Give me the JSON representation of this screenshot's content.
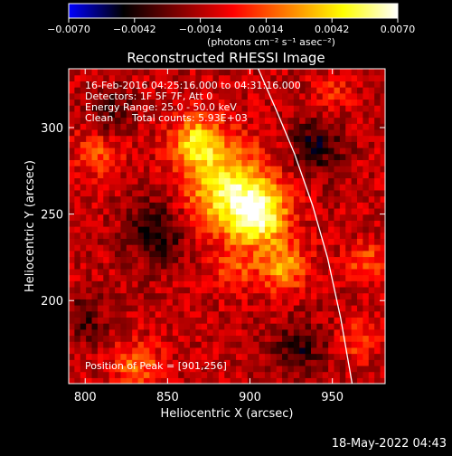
{
  "colorbar": {
    "min": -0.007,
    "max": 0.007,
    "tick_values": [
      -0.007,
      -0.0042,
      -0.0014,
      0.0014,
      0.0042,
      0.007
    ],
    "tick_labels": [
      "−0.0070",
      "−0.0042",
      "−0.0014",
      "0.0014",
      "0.0042",
      "0.0070"
    ],
    "unit_label": "(photons cm⁻² s⁻¹ asec⁻²)",
    "colormap": [
      "#0000ff",
      "#000000",
      "#800000",
      "#ff0000",
      "#ff8000",
      "#ffff00",
      "#ffffff"
    ]
  },
  "chart_data": {
    "type": "heatmap",
    "title": "Reconstructed RHESSI Image",
    "xlabel": "Heliocentric X (arcsec)",
    "ylabel": "Heliocentric Y (arcsec)",
    "xlim": [
      790,
      982
    ],
    "ylim": [
      152,
      334
    ],
    "x_ticks": [
      800,
      850,
      900,
      950
    ],
    "y_ticks": [
      200,
      250,
      300
    ],
    "grid": false,
    "peak_position": [
      901,
      256
    ],
    "sources": [
      {
        "x": 885,
        "y": 265,
        "intensity": 0.0058,
        "sigma": 18
      },
      {
        "x": 905,
        "y": 250,
        "intensity": 0.0068,
        "sigma": 12
      },
      {
        "x": 868,
        "y": 292,
        "intensity": 0.005,
        "sigma": 10
      },
      {
        "x": 920,
        "y": 220,
        "intensity": 0.0042,
        "sigma": 10
      },
      {
        "x": 890,
        "y": 218,
        "intensity": 0.0022,
        "sigma": 9
      },
      {
        "x": 808,
        "y": 285,
        "intensity": 0.0025,
        "sigma": 10
      },
      {
        "x": 832,
        "y": 162,
        "intensity": 0.003,
        "sigma": 10
      },
      {
        "x": 970,
        "y": 222,
        "intensity": 0.0028,
        "sigma": 8
      },
      {
        "x": 965,
        "y": 178,
        "intensity": 0.0022,
        "sigma": 8
      },
      {
        "x": 950,
        "y": 320,
        "intensity": 0.0016,
        "sigma": 8
      },
      {
        "x": 845,
        "y": 240,
        "intensity": -0.003,
        "sigma": 14
      },
      {
        "x": 815,
        "y": 310,
        "intensity": -0.0025,
        "sigma": 10
      },
      {
        "x": 940,
        "y": 290,
        "intensity": -0.003,
        "sigma": 12
      },
      {
        "x": 930,
        "y": 172,
        "intensity": -0.0025,
        "sigma": 12
      },
      {
        "x": 800,
        "y": 190,
        "intensity": -0.002,
        "sigma": 10
      }
    ],
    "limb_curve": {
      "x": [
        905,
        916,
        927,
        938,
        947,
        955,
        962
      ],
      "y": [
        334,
        310,
        285,
        255,
        225,
        190,
        152
      ]
    },
    "annotations": {
      "time_range": "16-Feb-2016 04:25:16.000 to 04:31:16.000",
      "detectors": "Detectors: 1F 5F 7F, Att 0",
      "energy_range": "Energy Range: 25.0 - 50.0 keV",
      "algorithm": "Clean",
      "total_counts": "Total counts: 5.93E+03",
      "peak_text": "Position of Peak = [901,256]"
    }
  },
  "footer": {
    "timestamp": "18-May-2022 04:43"
  }
}
